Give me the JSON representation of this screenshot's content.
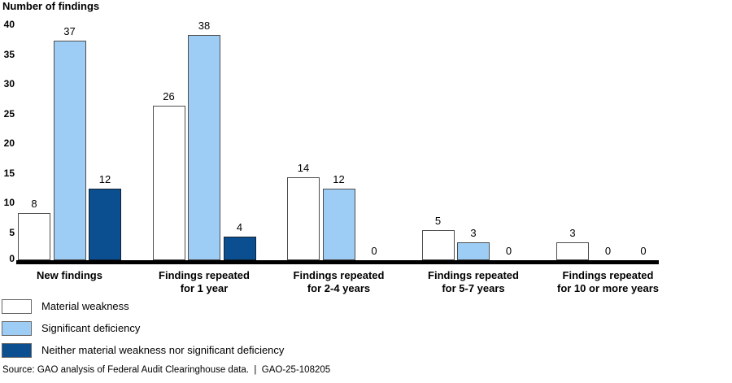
{
  "title": "Number of findings",
  "chart_data": {
    "type": "bar",
    "title": "Number of findings",
    "categories": [
      "New findings",
      "Findings repeated\nfor 1 year",
      "Findings repeated\nfor 2-4 years",
      "Findings repeated\nfor 5-7 years",
      "Findings repeated\nfor 10 or more years"
    ],
    "series": [
      {
        "name": "Material weakness",
        "color": "#FFFFFF",
        "border_color": "#4d4d4d",
        "values": [
          8,
          26,
          14,
          5,
          3
        ]
      },
      {
        "name": "Significant deficiency",
        "color": "#9DCDF5",
        "border_color": "#4d4d4d",
        "values": [
          37,
          38,
          12,
          3,
          0
        ]
      },
      {
        "name": "Neither material weakness nor significant deficiency",
        "color": "#0C4F91",
        "border_color": "#123",
        "values": [
          12,
          4,
          0,
          0,
          0
        ]
      }
    ],
    "ylabel": "Number of findings",
    "xlabel": "",
    "ylim": [
      0,
      40
    ],
    "yticks": [
      0,
      5,
      10,
      15,
      20,
      25,
      30,
      35,
      40
    ],
    "grid": false,
    "value_labels": true,
    "legend_position": "bottom-left",
    "axis_color": "#000000"
  },
  "source": {
    "text": "Source: GAO analysis of Federal Audit Clearinghouse data.  |  GAO-25-108205"
  }
}
